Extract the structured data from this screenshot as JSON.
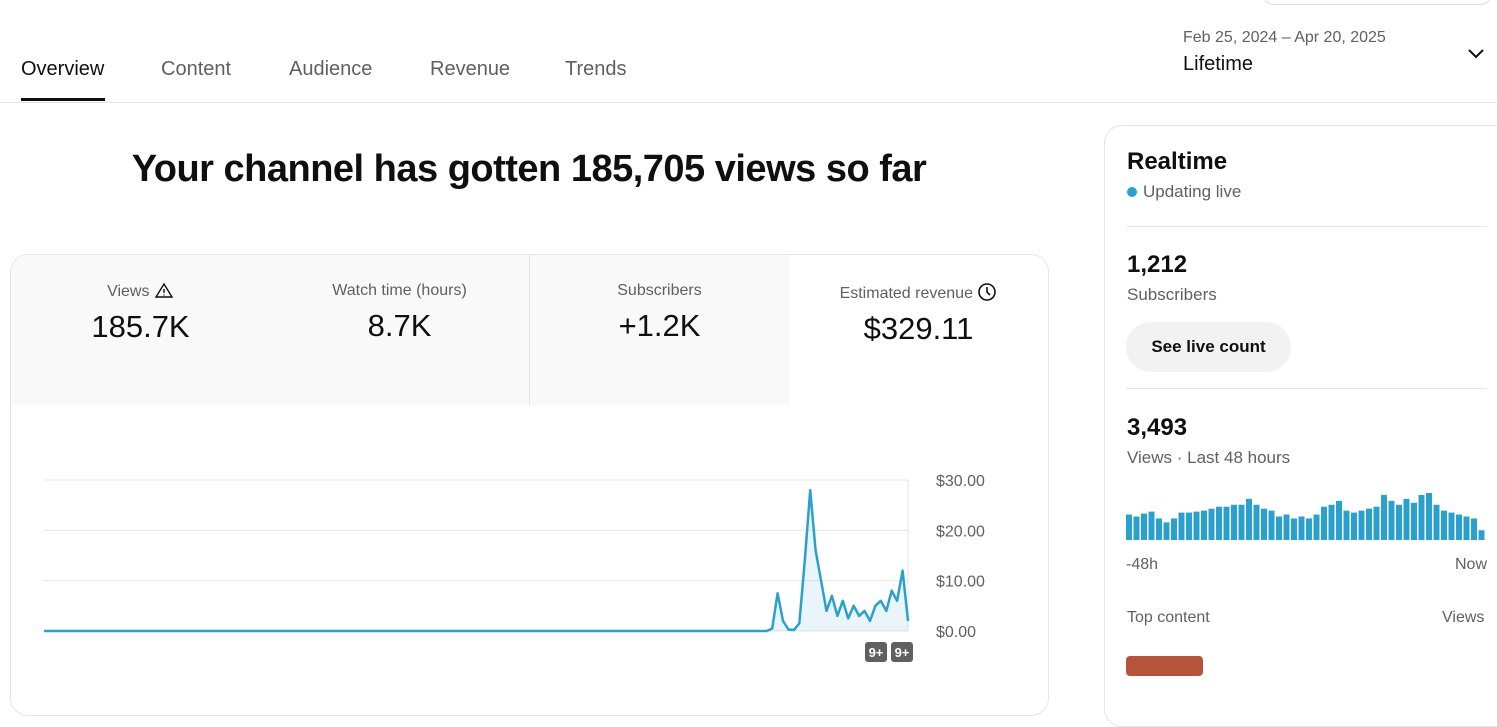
{
  "tabs": [
    "Overview",
    "Content",
    "Audience",
    "Revenue",
    "Trends"
  ],
  "date_range": {
    "range": "Feb 25, 2024 – Apr 20, 2025",
    "period": "Lifetime"
  },
  "headline": "Your channel has gotten 185,705 views so far",
  "metrics": [
    {
      "label": "Views",
      "value": "185.7K"
    },
    {
      "label": "Watch time (hours)",
      "value": "8.7K"
    },
    {
      "label": "Subscribers",
      "value": "+1.2K"
    },
    {
      "label": "Estimated revenue",
      "value": "$329.11"
    }
  ],
  "revenue_chart": {
    "type": "line",
    "color": "#2aa1cc",
    "ylim": [
      0,
      30
    ],
    "yticks": [
      {
        "value": 0,
        "label": "$0.00"
      },
      {
        "value": 10,
        "label": "$10.00"
      },
      {
        "value": 20,
        "label": "$20.00"
      },
      {
        "value": 30,
        "label": "$30.00"
      }
    ],
    "values": [
      0,
      0,
      0,
      0,
      0,
      0,
      0,
      0,
      0,
      0,
      0,
      0,
      0,
      0,
      0,
      0,
      0,
      0,
      0,
      0,
      0,
      0,
      0,
      0,
      0,
      0,
      0,
      0,
      0,
      0,
      0,
      0,
      0,
      0,
      0,
      0,
      0,
      0,
      0,
      0,
      0,
      0,
      0,
      0,
      0,
      0,
      0,
      0,
      0,
      0,
      0,
      0,
      0,
      0,
      0,
      0,
      0,
      0,
      0,
      0,
      0,
      0,
      0,
      0,
      0,
      0,
      0,
      0,
      0,
      0,
      0,
      0,
      0,
      0,
      0,
      0,
      0,
      0,
      0,
      0,
      0,
      0,
      0,
      0,
      0,
      0,
      0,
      0,
      0,
      0,
      0,
      0,
      0,
      0,
      0,
      0,
      0,
      0,
      0,
      0,
      0,
      0,
      0,
      0,
      0,
      0,
      0,
      0,
      0,
      0,
      0,
      0,
      0,
      0,
      0,
      0,
      0,
      0,
      0,
      0,
      0,
      0,
      0,
      0,
      0,
      0,
      0,
      0,
      0,
      0,
      0,
      0,
      0,
      0,
      0.5,
      7.5,
      2,
      0.3,
      0.2,
      1.5,
      14,
      28,
      16,
      10,
      4,
      7,
      3,
      6,
      2.5,
      5,
      3,
      4,
      2,
      5,
      6,
      4,
      8,
      6,
      12,
      2
    ],
    "annotations": [
      "9+",
      "9+"
    ]
  },
  "realtime": {
    "title": "Realtime",
    "status": "Updating live",
    "subscribers": {
      "value": "1,212",
      "label": "Subscribers"
    },
    "button": "See live count",
    "views": {
      "value": "3,493",
      "label": "Views · Last 48 hours"
    },
    "chart": {
      "type": "bar",
      "color": "#2aa1cc",
      "x_labels": [
        "-48h",
        "Now"
      ],
      "values": [
        52,
        48,
        54,
        58,
        44,
        36,
        44,
        56,
        56,
        58,
        60,
        64,
        68,
        68,
        72,
        72,
        84,
        72,
        64,
        60,
        48,
        52,
        44,
        48,
        44,
        52,
        68,
        72,
        80,
        60,
        56,
        60,
        64,
        68,
        92,
        80,
        72,
        84,
        76,
        92,
        96,
        72,
        60,
        56,
        52,
        48,
        44,
        20
      ]
    },
    "top_content": {
      "label": "Top content",
      "column": "Views"
    }
  }
}
